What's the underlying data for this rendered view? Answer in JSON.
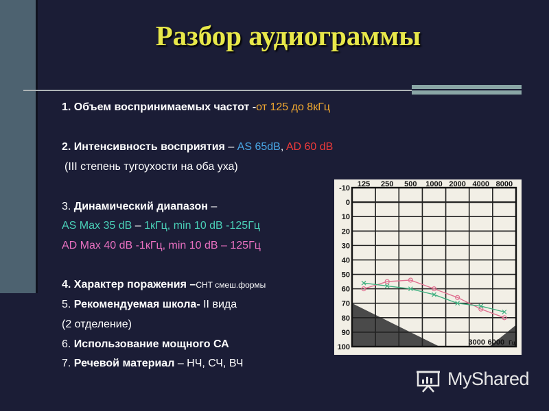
{
  "title": "Разбор аудиограммы",
  "items": {
    "i1": {
      "label": "1. Объем воспринимаемых частот -",
      "value": "от 125 до 8кГц"
    },
    "i2": {
      "label": "2. Интенсивность восприятия",
      "dash": " – ",
      "as": "AS  65dB",
      "sep": ", ",
      "ad": "AD 60 dB"
    },
    "i2b": "(III степень тугоухости на оба уха)",
    "i3": {
      "num": "3. ",
      "label": "Динамический диапазон",
      "dash": " –"
    },
    "i3a": {
      "pre": "AS  Max 35 dB ",
      "dash1": "–",
      "mid": " 1кГц, min 10 dB -125Гц"
    },
    "i3b": "AD  Max 40 dB -1кГц, min 10 dB – 125Гц",
    "i4": {
      "label": "4. Характер поражения –",
      "value": "СНТ смеш.формы"
    },
    "i5": {
      "num": "5. ",
      "label": "Рекомендуемая школа-",
      "value": " II вида"
    },
    "i5b": "(2 отделение)",
    "i6": {
      "num": "6. ",
      "label": "Использование мощного СА"
    },
    "i7": {
      "num": "7. ",
      "label": "Речевой материал",
      "dash": "  –",
      "value": "  НЧ, СЧ, ВЧ"
    }
  },
  "brand": {
    "text": "MyShared",
    "icon": "presentation-board-icon"
  },
  "colors": {
    "background": "#1b1d36",
    "title": "#e8e84a",
    "orange": "#f0a830",
    "blue": "#4aa8e8",
    "red": "#f03a3a",
    "cyan": "#4ad0b8",
    "pink": "#e870c0"
  },
  "chart_data": {
    "type": "line",
    "x": [
      125,
      250,
      500,
      1000,
      2000,
      4000,
      8000
    ],
    "x_tick_labels_top": [
      "125",
      "250",
      "500",
      "1000",
      "2000",
      "4000",
      "8000"
    ],
    "x_tick_labels_bottom": [
      "3000",
      "6000",
      "Гц"
    ],
    "y_tick_labels": [
      "-10",
      "0",
      "10",
      "20",
      "30",
      "40",
      "50",
      "60",
      "70",
      "80",
      "90",
      "100"
    ],
    "ylim": [
      -10,
      100
    ],
    "y_inverted": true,
    "grid": true,
    "series": [
      {
        "color": "#e07090",
        "values": [
          60,
          55,
          54,
          60,
          66,
          74,
          80
        ]
      },
      {
        "color": "#40b080",
        "values": [
          56,
          58,
          60,
          64,
          70,
          72,
          76
        ]
      }
    ]
  }
}
